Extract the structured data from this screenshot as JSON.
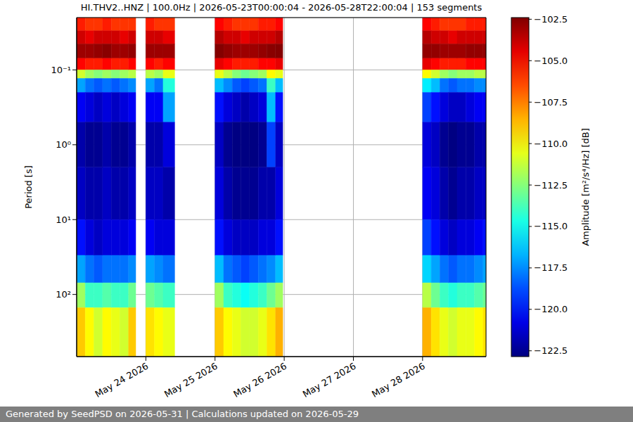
{
  "chart_data": {
    "type": "heatmap",
    "title": "HI.THV2..HNZ | 100.0Hz | 2026-05-23T00:00:04 - 2026-05-28T22:00:04 | 153 segments",
    "y_label": "Period [s]",
    "footer": "Generated by SeedPSD on 2026-05-31 | Calculations updated on 2026-05-29",
    "log": "y",
    "grid": true,
    "xlim": [
      "2026-05-23T00:00",
      "2026-05-28T22:00"
    ],
    "xticks": [
      {
        "value": "2026-05-24T00:00",
        "label": "May 24 2026"
      },
      {
        "value": "2026-05-25T00:00",
        "label": "May 25 2026"
      },
      {
        "value": "2026-05-26T00:00",
        "label": "May 26 2026"
      },
      {
        "value": "2026-05-27T00:00",
        "label": "May 27 2026"
      },
      {
        "value": "2026-05-28T00:00",
        "label": "May 28 2026"
      }
    ],
    "ylim": [
      0.02,
      676
    ],
    "yticks": [
      {
        "value": 0.1,
        "label": "10⁻¹"
      },
      {
        "value": 1,
        "label": "10⁰"
      },
      {
        "value": 10,
        "label": "10¹"
      },
      {
        "value": 100,
        "label": "10²"
      }
    ],
    "time_bins": [
      [
        "2026-05-23T00:00",
        "2026-05-23T03:00"
      ],
      [
        "2026-05-23T03:00",
        "2026-05-23T06:00"
      ],
      [
        "2026-05-23T06:00",
        "2026-05-23T09:00"
      ],
      [
        "2026-05-23T09:00",
        "2026-05-23T12:00"
      ],
      [
        "2026-05-23T12:00",
        "2026-05-23T15:00"
      ],
      [
        "2026-05-23T15:00",
        "2026-05-23T18:00"
      ],
      [
        "2026-05-23T18:00",
        "2026-05-23T20:30"
      ],
      [
        "2026-05-24T00:00",
        "2026-05-24T03:00"
      ],
      [
        "2026-05-24T03:00",
        "2026-05-24T06:00"
      ],
      [
        "2026-05-24T06:00",
        "2026-05-24T10:00"
      ],
      [
        "2026-05-25T00:00",
        "2026-05-25T03:00"
      ],
      [
        "2026-05-25T03:00",
        "2026-05-25T06:00"
      ],
      [
        "2026-05-25T06:00",
        "2026-05-25T09:00"
      ],
      [
        "2026-05-25T09:00",
        "2026-05-25T12:00"
      ],
      [
        "2026-05-25T12:00",
        "2026-05-25T15:00"
      ],
      [
        "2026-05-25T15:00",
        "2026-05-25T18:00"
      ],
      [
        "2026-05-25T18:00",
        "2026-05-25T21:00"
      ],
      [
        "2026-05-25T21:00",
        "2026-05-25T23:30"
      ],
      [
        "2026-05-28T00:00",
        "2026-05-28T03:00"
      ],
      [
        "2026-05-28T03:00",
        "2026-05-28T06:00"
      ],
      [
        "2026-05-28T06:00",
        "2026-05-28T09:00"
      ],
      [
        "2026-05-28T09:00",
        "2026-05-28T12:00"
      ],
      [
        "2026-05-28T12:00",
        "2026-05-28T15:00"
      ],
      [
        "2026-05-28T15:00",
        "2026-05-28T18:00"
      ],
      [
        "2026-05-28T18:00",
        "2026-05-28T21:00"
      ],
      [
        "2026-05-28T21:00",
        "2026-05-28T22:00"
      ]
    ],
    "period_bins": [
      0.02,
      0.03,
      0.045,
      0.07,
      0.1,
      0.13,
      0.2,
      0.5,
      2,
      10,
      30,
      70,
      150,
      676
    ],
    "cells": [
      [
        -105.5,
        -104,
        -103,
        -105,
        -111,
        -117,
        -120.5,
        -122,
        -121.5,
        -120,
        -117,
        -112,
        -109
      ],
      [
        -106,
        -104.5,
        -103,
        -105.5,
        -112,
        -118,
        -121,
        -122.5,
        -122,
        -121,
        -118,
        -114,
        -110
      ],
      [
        -106,
        -104,
        -102.8,
        -105.5,
        -112.5,
        -118.5,
        -121.5,
        -122.5,
        -122,
        -121.5,
        -118.5,
        -114,
        -111
      ],
      [
        -105.5,
        -104,
        -102.6,
        -105,
        -112,
        -118,
        -121,
        -122,
        -121.5,
        -121,
        -118,
        -113.5,
        -110
      ],
      [
        -106,
        -104,
        -103,
        -105.5,
        -112.5,
        -118.5,
        -121.5,
        -122.5,
        -122,
        -121,
        -118,
        -114,
        -110.5
      ],
      [
        -106,
        -104.5,
        -103,
        -105.5,
        -112,
        -118,
        -121,
        -122.5,
        -122,
        -121,
        -118,
        -114,
        -111
      ],
      [
        -106,
        -104,
        -102.8,
        -105,
        -111.5,
        -117.5,
        -120.5,
        -122,
        -121.5,
        -120.5,
        -117.5,
        -113,
        -109
      ],
      [
        -105.5,
        -104,
        -103,
        -105,
        -111.5,
        -117,
        -120.5,
        -122,
        -121.5,
        -120.5,
        -117,
        -113,
        -109.5
      ],
      [
        -106,
        -104,
        -103,
        -105.5,
        -112,
        -118,
        -120.5,
        -122,
        -121.5,
        -121,
        -117.5,
        -113.5,
        -110
      ],
      [
        -106,
        -104.5,
        -103,
        -105,
        -110.5,
        -114.5,
        -117,
        -121,
        -122,
        -121,
        -118,
        -114,
        -110.5
      ],
      [
        -105,
        -103.5,
        -102.5,
        -104.5,
        -110.5,
        -116.5,
        -120,
        -121.5,
        -121,
        -120,
        -116.5,
        -112,
        -109
      ],
      [
        -105.5,
        -104,
        -102.8,
        -105,
        -111.5,
        -117.5,
        -121,
        -122.5,
        -122,
        -121,
        -118,
        -114,
        -110
      ],
      [
        -106,
        -104,
        -103,
        -105.5,
        -112.5,
        -118.5,
        -121.5,
        -122.8,
        -122.5,
        -121.5,
        -118.5,
        -114.5,
        -110.5
      ],
      [
        -106,
        -104.5,
        -103,
        -105.5,
        -113,
        -119,
        -122,
        -122.8,
        -122.5,
        -121.5,
        -119,
        -115,
        -111
      ],
      [
        -106,
        -104,
        -103,
        -105.5,
        -112.5,
        -118.5,
        -121.5,
        -122.8,
        -122.5,
        -121.5,
        -118.5,
        -114.5,
        -111
      ],
      [
        -105.5,
        -104,
        -102.8,
        -105,
        -112,
        -118,
        -121,
        -122.5,
        -122,
        -121,
        -118,
        -114,
        -110.5
      ],
      [
        -105.5,
        -104,
        -102.6,
        -105,
        -110,
        -114,
        -116.5,
        -119,
        -122,
        -121,
        -117.5,
        -113,
        -109.5
      ],
      [
        -105,
        -103.5,
        -102.5,
        -104.5,
        -110.5,
        -116.5,
        -120,
        -121.5,
        -121,
        -120,
        -116.5,
        -112,
        -108.5
      ],
      [
        -105,
        -103.5,
        -102.8,
        -104.5,
        -110,
        -115.5,
        -119,
        -121,
        -120.5,
        -119,
        -116,
        -111.5,
        -108.5
      ],
      [
        -105.5,
        -104,
        -102.8,
        -105,
        -111,
        -116.5,
        -120,
        -121.5,
        -121,
        -120,
        -117,
        -113,
        -109.5
      ],
      [
        -106,
        -104,
        -103,
        -105.5,
        -112,
        -118,
        -121,
        -122.5,
        -122,
        -121,
        -118,
        -114,
        -110.5
      ],
      [
        -106,
        -104.5,
        -103,
        -105.5,
        -112.5,
        -118.5,
        -121.5,
        -122.8,
        -122.5,
        -121.5,
        -118.5,
        -114.5,
        -111
      ],
      [
        -106,
        -104,
        -103,
        -105.5,
        -112,
        -118,
        -121.5,
        -122.5,
        -122,
        -121,
        -118,
        -114,
        -110.5
      ],
      [
        -105.5,
        -104,
        -102.8,
        -105,
        -112,
        -118,
        -121,
        -122.5,
        -122,
        -121,
        -118,
        -114,
        -110.5
      ],
      [
        -105.5,
        -104,
        -102.8,
        -105,
        -111.5,
        -117.5,
        -120.5,
        -122,
        -121.5,
        -120.5,
        -117.5,
        -113.5,
        -110
      ],
      [
        -105.5,
        -104,
        -102.8,
        -105,
        -111.5,
        -117.5,
        -120.5,
        -122,
        -121.5,
        -120,
        -117,
        -113,
        -109.5
      ]
    ],
    "colorbar": {
      "label": "Amplitude [m²/s⁴/Hz] [dB]",
      "range": [
        -122.85,
        -102.4
      ],
      "ticks": [
        {
          "value": -102.5,
          "label": "−102.5"
        },
        {
          "value": -105,
          "label": "−105.0"
        },
        {
          "value": -107.5,
          "label": "−107.5"
        },
        {
          "value": -110,
          "label": "−110.0"
        },
        {
          "value": -112.5,
          "label": "−112.5"
        },
        {
          "value": -115,
          "label": "−115.0"
        },
        {
          "value": -117.5,
          "label": "−117.5"
        },
        {
          "value": -120,
          "label": "−120.0"
        },
        {
          "value": -122.5,
          "label": "−122.5"
        }
      ]
    }
  }
}
